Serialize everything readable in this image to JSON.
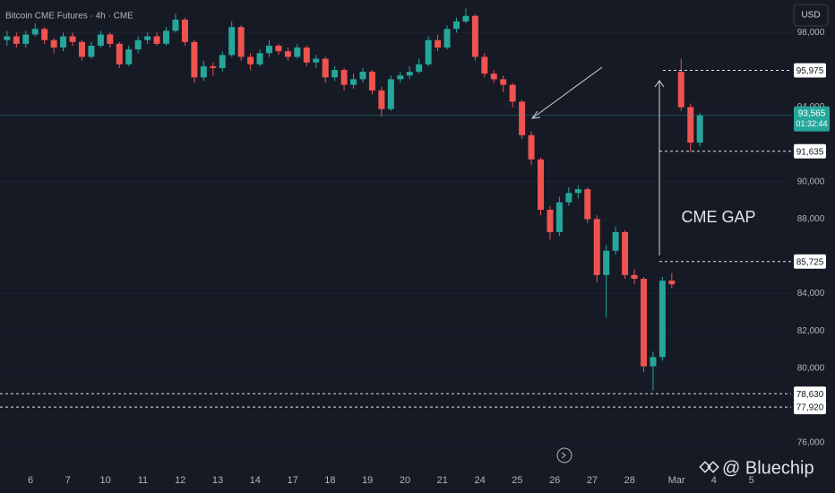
{
  "chart_data": {
    "type": "candlestick",
    "title": "Bitcoin CME Futures · 4h · CME",
    "currency": "USD",
    "annotation": "CME GAP",
    "watermark": "@ Bluechip",
    "up_color": "#26a69a",
    "down_color": "#ef5350",
    "categories": [
      null,
      null,
      null,
      "6",
      null,
      null,
      null,
      "7",
      null,
      null,
      null,
      "10",
      null,
      null,
      null,
      "11",
      null,
      null,
      null,
      "12",
      null,
      null,
      null,
      "13",
      null,
      null,
      null,
      "14",
      null,
      null,
      null,
      "17",
      null,
      null,
      null,
      "18",
      null,
      null,
      null,
      "19",
      null,
      null,
      null,
      "20",
      null,
      null,
      null,
      "21",
      null,
      null,
      null,
      "24",
      null,
      null,
      null,
      "25",
      null,
      null,
      null,
      "26",
      null,
      null,
      null,
      "27",
      null,
      null,
      null,
      "28",
      null,
      null,
      null,
      null,
      "Mar",
      null,
      null,
      null,
      "4",
      null,
      null,
      null,
      "5",
      null,
      null,
      null
    ],
    "open": [
      97600,
      97800,
      97400,
      97900,
      98200,
      97600,
      97200,
      97800,
      97500,
      96700,
      97300,
      97900,
      97400,
      96300,
      97100,
      97600,
      97800,
      97400,
      98100,
      98700,
      97500,
      95600,
      96200,
      96100,
      96800,
      98300,
      96700,
      96300,
      96900,
      97300,
      97000,
      96700,
      97200,
      96400,
      96600,
      95600,
      96000,
      95200,
      95500,
      95900,
      94900,
      93900,
      95500,
      95700,
      95900,
      96300,
      97600,
      97200,
      98200,
      98600,
      98900,
      96700,
      95800,
      95500,
      95200,
      94300,
      92500,
      91200,
      88500,
      87300,
      88900,
      89400,
      89600,
      88000,
      85000,
      86300,
      87300,
      85000,
      84800,
      80100,
      80600,
      84700,
      95900,
      94000,
      92100,
      null,
      null,
      null,
      null,
      null,
      null,
      null,
      null,
      null
    ],
    "high": [
      98100,
      98000,
      98100,
      98500,
      98300,
      97700,
      98000,
      98000,
      97600,
      97500,
      98100,
      98000,
      97500,
      97300,
      97800,
      98000,
      98000,
      98300,
      99000,
      98800,
      97600,
      96500,
      96400,
      97000,
      98600,
      98400,
      96900,
      97100,
      97600,
      97400,
      97200,
      97400,
      97300,
      96800,
      96700,
      96200,
      96100,
      95800,
      96100,
      96000,
      95100,
      95700,
      95900,
      96200,
      96600,
      97800,
      97900,
      98400,
      98800,
      99300,
      99000,
      96900,
      96000,
      95700,
      95300,
      94400,
      92700,
      91300,
      88700,
      89200,
      89700,
      89800,
      89700,
      88200,
      86600,
      87600,
      87400,
      85300,
      84900,
      80900,
      84900,
      85100,
      96600,
      94200,
      93700,
      null,
      null,
      null,
      null,
      null,
      null,
      null,
      null,
      null
    ],
    "low": [
      97300,
      97200,
      97200,
      97800,
      97400,
      96900,
      97000,
      97300,
      96500,
      96600,
      97200,
      97200,
      96100,
      96200,
      96900,
      97400,
      97300,
      97300,
      98000,
      97300,
      95300,
      95400,
      95700,
      95900,
      96700,
      96500,
      96000,
      96200,
      96700,
      96800,
      96500,
      96600,
      96200,
      96100,
      95300,
      95400,
      94900,
      95000,
      95300,
      94700,
      93500,
      93800,
      95300,
      95500,
      95800,
      96200,
      97000,
      97100,
      98000,
      98500,
      96500,
      95600,
      95300,
      94800,
      94000,
      92300,
      90900,
      88200,
      86900,
      87100,
      88700,
      89100,
      87800,
      84600,
      82700,
      86100,
      84800,
      84500,
      79800,
      78800,
      80400,
      84300,
      93800,
      91600,
      91900,
      null,
      null,
      null,
      null,
      null,
      null,
      null,
      null,
      null
    ],
    "close": [
      97800,
      97400,
      97900,
      98200,
      97600,
      97200,
      97800,
      97500,
      96700,
      97300,
      97900,
      97400,
      96300,
      97100,
      97600,
      97800,
      97400,
      98100,
      98700,
      97500,
      95600,
      96200,
      96100,
      96800,
      98300,
      96700,
      96300,
      96900,
      97300,
      97000,
      96700,
      97200,
      96400,
      96600,
      95600,
      96000,
      95200,
      95500,
      95900,
      94900,
      93900,
      95500,
      95700,
      95900,
      96300,
      97600,
      97200,
      98200,
      98600,
      98900,
      96700,
      95800,
      95500,
      95200,
      94300,
      92500,
      91200,
      88500,
      87300,
      88900,
      89400,
      89600,
      88000,
      85000,
      86300,
      87300,
      85000,
      84800,
      80100,
      80600,
      84700,
      84500,
      94000,
      92100,
      93565,
      null,
      null,
      null,
      null,
      null,
      null,
      null,
      null,
      null
    ],
    "ylim": [
      74750,
      99750
    ],
    "yticks": [
      {
        "value": 76000,
        "label": "76,000"
      },
      {
        "value": 80000,
        "label": "80,000"
      },
      {
        "value": 82000,
        "label": "82,000"
      },
      {
        "value": 84000,
        "label": "84,000"
      },
      {
        "value": 88000,
        "label": "88,000"
      },
      {
        "value": 90000,
        "label": "90,000"
      },
      {
        "value": 94000,
        "label": "94,000"
      },
      {
        "value": 98000,
        "label": "98,000"
      }
    ],
    "grid": true,
    "levels": [
      {
        "value": 95975,
        "label": "95,975"
      },
      {
        "value": 91635,
        "label": "91,635"
      },
      {
        "value": 85725,
        "label": "85,725"
      },
      {
        "value": 78630,
        "label": "78,630"
      },
      {
        "value": 77920,
        "label": "77,920"
      }
    ],
    "last_price": {
      "value": 93565,
      "label": "93,565",
      "time": "01:32:44"
    }
  }
}
